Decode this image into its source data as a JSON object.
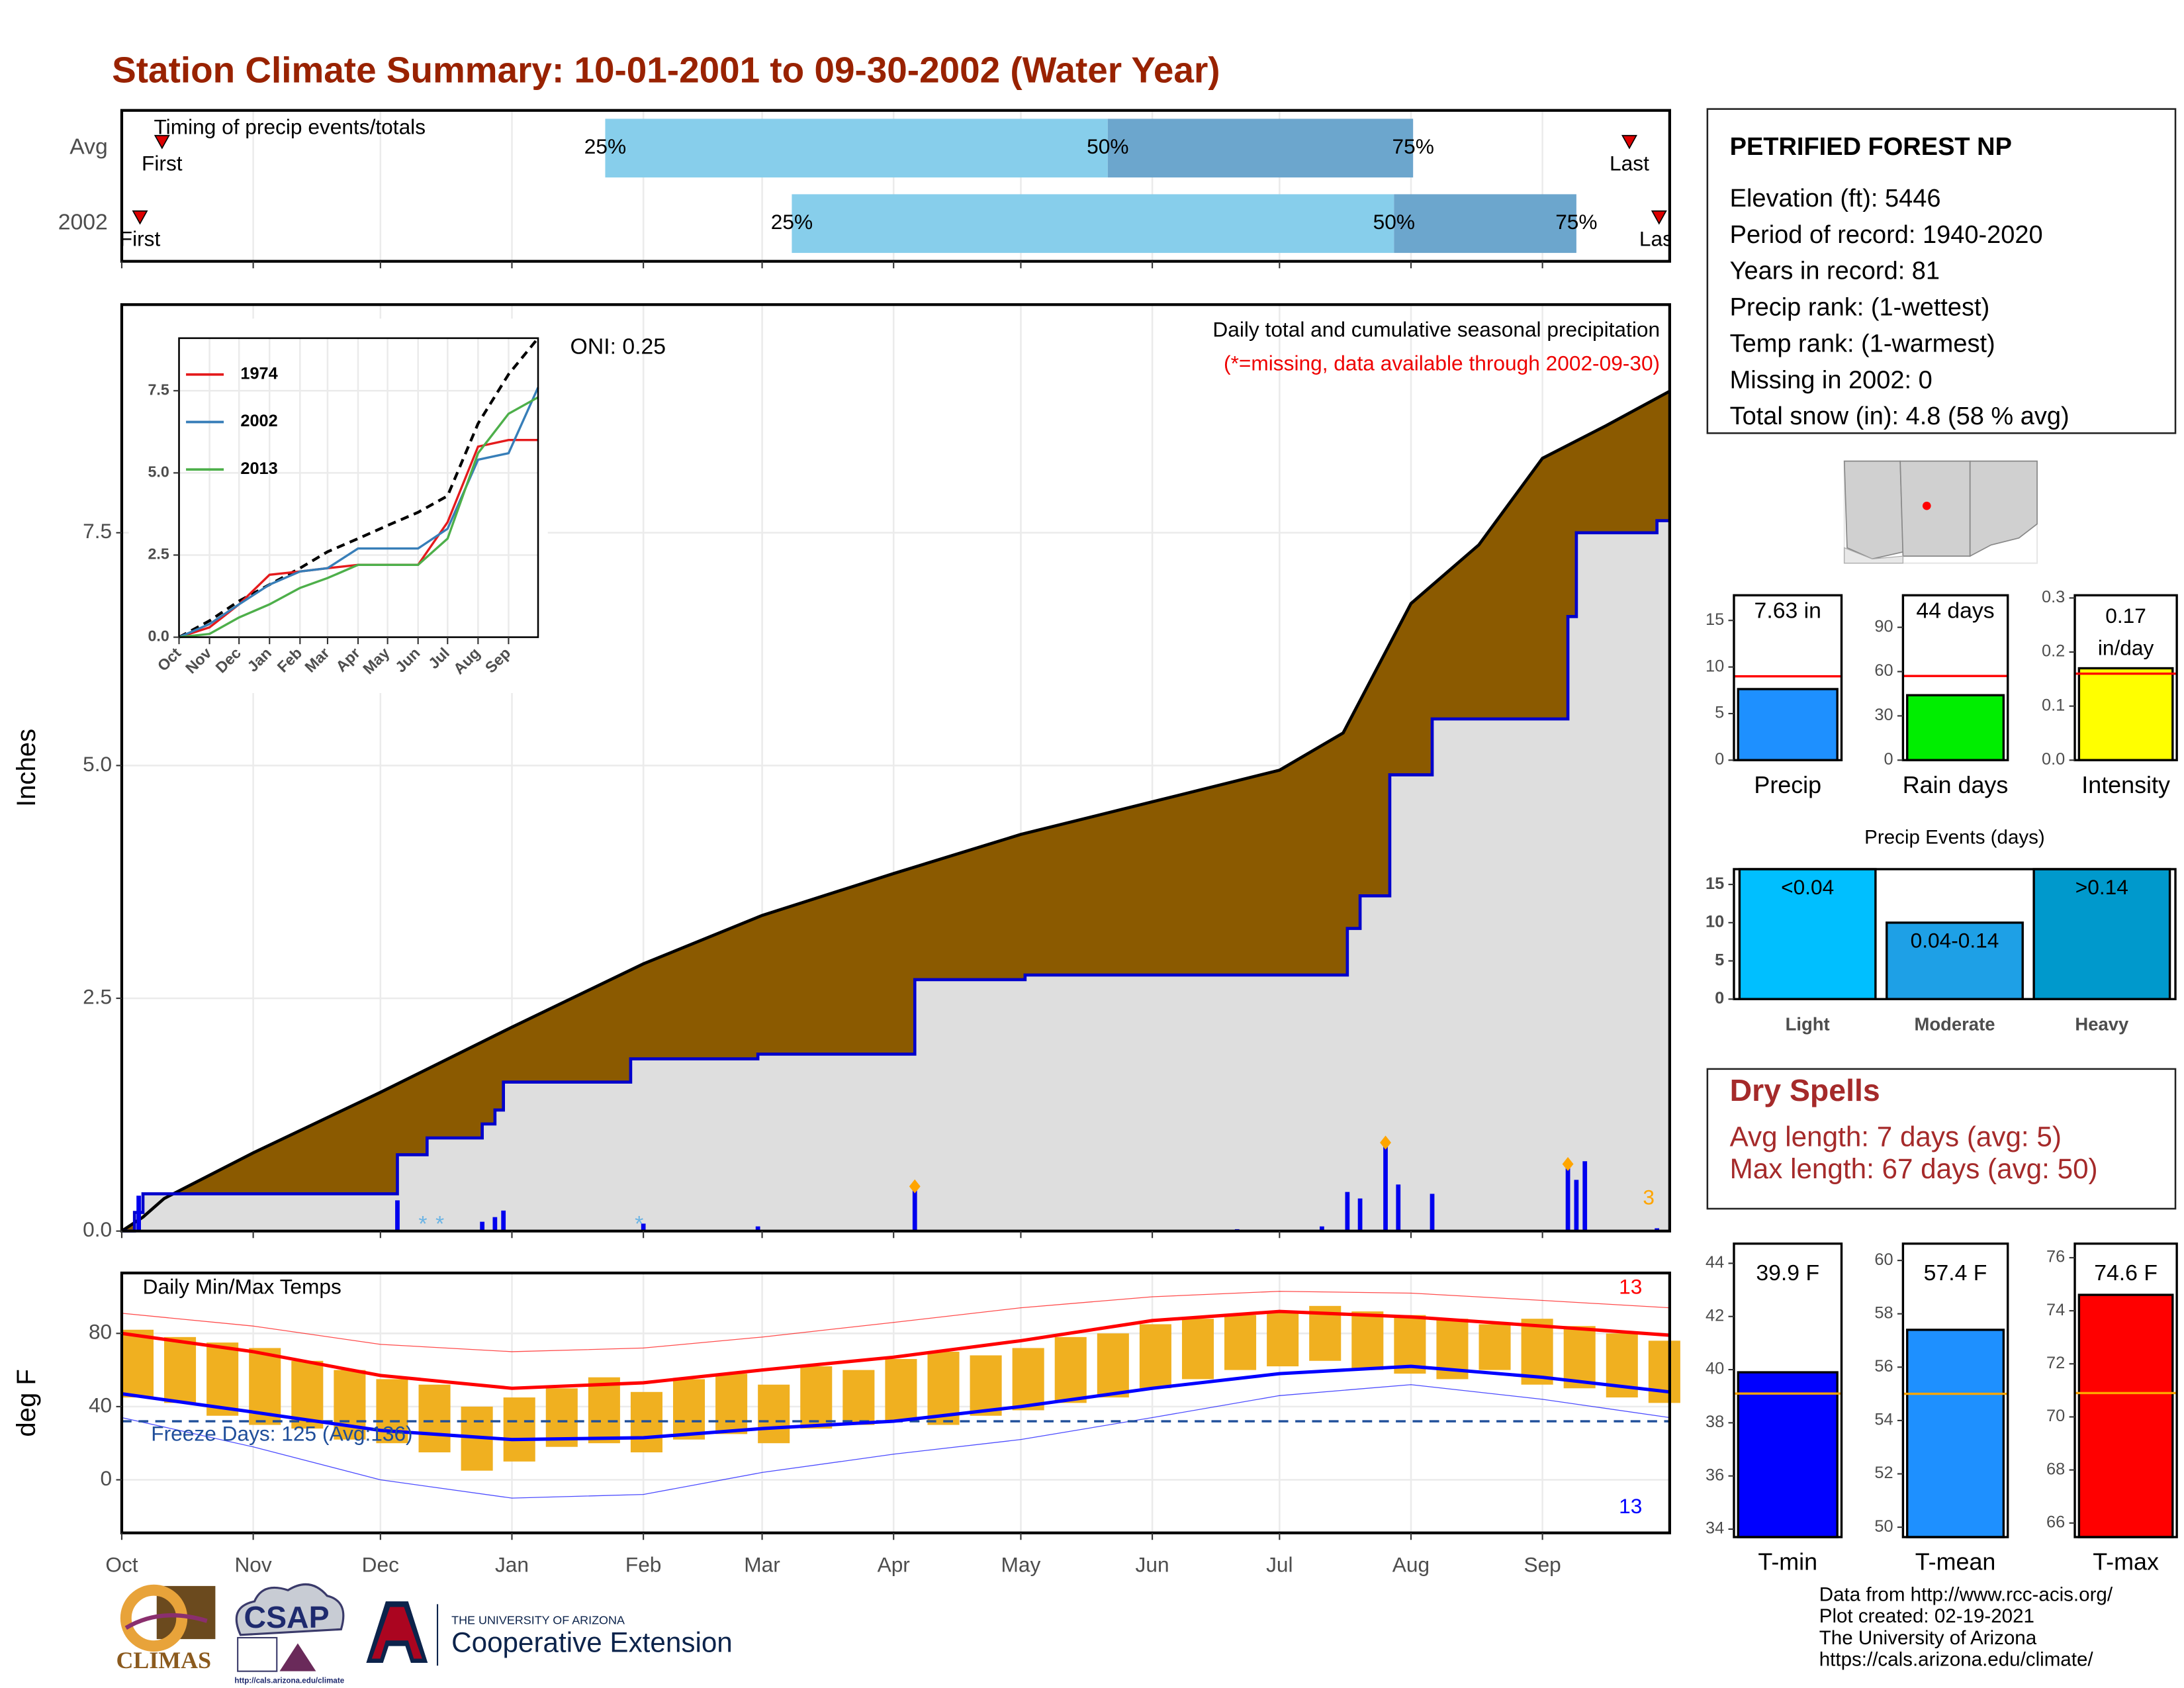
{
  "title": "Station Climate Summary: 10-01-2001 to 09-30-2002 (Water Year)",
  "info": {
    "station": "PETRIFIED FOREST NP",
    "lines": [
      "Elevation (ft): 5446",
      "Period of record: 1940-2020",
      "Years in record: 81",
      "Precip rank:  (1-wettest)",
      "Temp rank:  (1-warmest)",
      "Missing in 2002: 0",
      "Total snow (in): 4.8 (58 % avg)"
    ]
  },
  "dry_spells": {
    "title": "Dry Spells",
    "lines": [
      "Avg length: 7 days (avg: 5)",
      "Max length: 67 days (avg: 50)"
    ]
  },
  "footer": [
    "Data from http://www.rcc-acis.org/",
    "Plot created: 02-19-2021",
    "The University of Arizona",
    "https://cals.arizona.edu/climate/"
  ],
  "logos": {
    "climas": "CLIMAS",
    "csap": "CSAP",
    "csap_url": "http://cals.arizona.edu/climate",
    "university": "THE UNIVERSITY OF ARIZONA",
    "extension": "Cooperative Extension"
  },
  "chart_data": [
    {
      "type": "timing",
      "title": "Timing of precip events/totals",
      "xlim": [
        0,
        365
      ],
      "xticks": [
        0,
        31,
        61,
        92,
        123,
        151,
        182,
        212,
        243,
        273,
        304,
        335
      ],
      "grid": true,
      "labels": {
        "first": "First",
        "last": "Last",
        "q25": "25%",
        "q50": "50%",
        "q75": "75%"
      },
      "rows": [
        {
          "name": "Avg",
          "first": 9.5,
          "q25": 114,
          "q50": 232.5,
          "q75": 304.5,
          "last": 355.5
        },
        {
          "name": "2002",
          "first": 4.3,
          "q25": 158,
          "q50": 300,
          "q75": 343,
          "last": 362.5
        }
      ],
      "colors": {
        "light": "#87ceeb",
        "dark": "#6ca6cd",
        "marker": "#dd0000"
      }
    },
    {
      "type": "cumulative",
      "title": "Daily total and cumulative seasonal precipitation",
      "subtitle": "(*=missing, data available through 2002-09-30)",
      "oni": "ONI: 0.25",
      "ylabel": "Inches",
      "xlim": [
        0,
        365
      ],
      "ylim": [
        0,
        9.95
      ],
      "xticks": [
        0,
        31,
        61,
        92,
        123,
        151,
        182,
        212,
        243,
        273,
        304,
        335
      ],
      "yticks": [
        {
          "value": 0,
          "label": "0.0"
        },
        2.5,
        {
          "value": 5,
          "label": "5.0"
        },
        7.5
      ],
      "grid": true,
      "average": {
        "x": [
          0,
          5,
          10,
          31,
          61,
          92,
          123,
          151,
          182,
          212,
          243,
          273,
          288,
          304,
          320,
          335,
          350,
          365
        ],
        "values": [
          0,
          0.15,
          0.35,
          0.84,
          1.49,
          2.19,
          2.87,
          3.39,
          3.84,
          4.26,
          4.61,
          4.95,
          5.35,
          6.74,
          7.37,
          8.3,
          8.65,
          9.02
        ]
      },
      "observed": {
        "x": [
          0,
          3,
          3,
          5,
          5,
          65,
          65,
          72,
          72,
          85,
          85,
          88,
          88,
          90,
          90,
          120,
          120,
          150,
          150,
          187,
          187,
          213,
          213,
          289,
          289,
          292,
          292,
          299,
          299,
          309,
          309,
          341,
          341,
          343,
          343,
          362,
          362,
          365
        ],
        "values": [
          0,
          0,
          0.2,
          0.2,
          0.4,
          0.4,
          0.82,
          0.82,
          1.0,
          1.0,
          1.15,
          1.15,
          1.3,
          1.3,
          1.6,
          1.6,
          1.85,
          1.85,
          1.9,
          1.9,
          2.7,
          2.7,
          2.75,
          2.75,
          3.25,
          3.25,
          3.6,
          3.6,
          4.9,
          4.9,
          5.5,
          5.5,
          6.6,
          6.6,
          7.5,
          7.5,
          7.63,
          7.63
        ]
      },
      "daily": {
        "x": [
          4,
          65,
          85,
          88,
          90,
          123,
          150,
          187,
          263,
          283,
          289,
          292,
          298,
          301,
          309,
          341,
          343,
          345,
          362
        ],
        "values": [
          0.38,
          0.33,
          0.1,
          0.15,
          0.22,
          0.08,
          0.05,
          0.48,
          0.02,
          0.05,
          0.42,
          0.35,
          0.95,
          0.5,
          0.4,
          0.72,
          0.55,
          0.75,
          0.03
        ]
      },
      "top_events": {
        "x": [
          187,
          298,
          341
        ],
        "values": [
          0.48,
          0.95,
          0.72
        ]
      },
      "top_events_label": "3",
      "missing": {
        "x": [
          71,
          75,
          122
        ],
        "label": "*"
      },
      "average_color": "#8b5a00",
      "observed_color": "#dedede",
      "line_color": "#0000cc",
      "bar_color": "#0000ee",
      "event_color": "#ffa500",
      "missing_color": "#6cb4e4",
      "subtitle_color": "#ee0000"
    },
    {
      "type": "line",
      "x": [
        0,
        31,
        61,
        92,
        123,
        151,
        182,
        212,
        243,
        273,
        304,
        335,
        365
      ],
      "xlim": [
        0,
        365
      ],
      "xticks": [
        {
          "value": 0,
          "label": "Oct"
        },
        {
          "value": 31,
          "label": "Nov"
        },
        {
          "value": 61,
          "label": "Dec"
        },
        {
          "value": 92,
          "label": "Jan"
        },
        {
          "value": 123,
          "label": "Feb"
        },
        {
          "value": 151,
          "label": "Mar"
        },
        {
          "value": 182,
          "label": "Apr"
        },
        {
          "value": 212,
          "label": "May"
        },
        {
          "value": 243,
          "label": "Jun"
        },
        {
          "value": 273,
          "label": "Jul"
        },
        {
          "value": 304,
          "label": "Aug"
        },
        {
          "value": 335,
          "label": "Sep"
        }
      ],
      "ylim": [
        0,
        9.1
      ],
      "yticks": [
        {
          "value": 0,
          "label": "0.0"
        },
        2.5,
        {
          "value": 5,
          "label": "5.0"
        },
        7.5
      ],
      "grid": true,
      "average": {
        "color": "#000000",
        "values": [
          0,
          0.5,
          1.1,
          1.6,
          2.1,
          2.6,
          3.0,
          3.4,
          3.8,
          4.3,
          6.5,
          8.0,
          9.1
        ]
      },
      "series": [
        {
          "name": "1974",
          "color": "#e41a1c",
          "values": [
            0,
            0.3,
            1.0,
            1.9,
            2.0,
            2.1,
            2.2,
            2.2,
            2.2,
            3.5,
            5.8,
            6.0,
            6.0
          ]
        },
        {
          "name": "2002",
          "color": "#377eb8",
          "values": [
            0,
            0.4,
            1.0,
            1.6,
            2.0,
            2.1,
            2.7,
            2.7,
            2.7,
            3.3,
            5.4,
            5.6,
            7.6
          ]
        },
        {
          "name": "2013",
          "color": "#4daf4a",
          "values": [
            0,
            0.1,
            0.6,
            1.0,
            1.5,
            1.8,
            2.2,
            2.2,
            2.2,
            3.0,
            5.6,
            6.8,
            7.3
          ]
        }
      ]
    },
    {
      "type": "temperature",
      "title": "Daily Min/Max Temps",
      "ylabel": "deg F",
      "xlim": [
        0,
        365
      ],
      "ylim": [
        -29,
        113
      ],
      "xticks": [
        {
          "value": 0,
          "label": "Oct"
        },
        {
          "value": 31,
          "label": "Nov"
        },
        {
          "value": 61,
          "label": "Dec"
        },
        {
          "value": 92,
          "label": "Jan"
        },
        {
          "value": 123,
          "label": "Feb"
        },
        {
          "value": 151,
          "label": "Mar"
        },
        {
          "value": 182,
          "label": "Apr"
        },
        {
          "value": 212,
          "label": "May"
        },
        {
          "value": 243,
          "label": "Jun"
        },
        {
          "value": 273,
          "label": "Jul"
        },
        {
          "value": 304,
          "label": "Aug"
        },
        {
          "value": 335,
          "label": "Sep"
        }
      ],
      "yticks": [
        0,
        40,
        80
      ],
      "grid": true,
      "x": [
        0,
        10,
        20,
        30,
        40,
        50,
        60,
        70,
        80,
        90,
        100,
        110,
        120,
        130,
        140,
        150,
        160,
        170,
        180,
        190,
        200,
        210,
        220,
        230,
        240,
        250,
        260,
        270,
        280,
        290,
        300,
        310,
        320,
        330,
        340,
        350,
        360
      ],
      "tmax": [
        82,
        78,
        75,
        72,
        65,
        60,
        55,
        52,
        40,
        45,
        50,
        56,
        48,
        55,
        58,
        52,
        62,
        60,
        66,
        70,
        68,
        72,
        78,
        80,
        85,
        88,
        90,
        92,
        95,
        92,
        90,
        88,
        85,
        88,
        84,
        80,
        76
      ],
      "tmin": [
        45,
        42,
        35,
        30,
        28,
        22,
        20,
        15,
        5,
        10,
        18,
        20,
        15,
        22,
        25,
        20,
        28,
        30,
        32,
        30,
        35,
        38,
        42,
        45,
        50,
        55,
        60,
        62,
        65,
        60,
        58,
        55,
        60,
        52,
        50,
        45,
        42
      ],
      "avg_x": [
        0,
        31,
        61,
        92,
        123,
        151,
        182,
        212,
        243,
        273,
        304,
        335,
        365
      ],
      "avg_max": [
        80,
        70,
        57,
        50,
        53,
        60,
        67,
        76,
        87,
        92,
        89,
        84,
        79
      ],
      "avg_min": [
        47,
        37,
        27,
        22,
        23,
        28,
        32,
        40,
        50,
        58,
        62,
        56,
        48
      ],
      "record_max": [
        91,
        84,
        74,
        70,
        72,
        78,
        86,
        94,
        100,
        103,
        102,
        98,
        94
      ],
      "record_min": [
        34,
        18,
        0,
        -10,
        -8,
        4,
        14,
        22,
        34,
        46,
        52,
        44,
        34
      ],
      "freeze": 32,
      "freeze_label": "Freeze Days: 125 (Avg:136)",
      "max_count_label": "13",
      "min_count_label": "13",
      "bar_color": "#f0b020",
      "max_color": "#ff0000",
      "min_color": "#0000ff",
      "freeze_color": "#1f4e9a"
    },
    {
      "type": "bar",
      "categories": [
        "Precip"
      ],
      "values": [
        7.63
      ],
      "value_labels": [
        "7.63 in"
      ],
      "average": 9.0,
      "ylim": [
        0,
        17.7
      ],
      "yticks": [
        0,
        5,
        10,
        15
      ],
      "colors": [
        "#1e90ff"
      ],
      "average_color": "#ff0000"
    },
    {
      "type": "bar",
      "categories": [
        "Rain days"
      ],
      "values": [
        44
      ],
      "value_labels": [
        "44 days"
      ],
      "average": 57,
      "ylim": [
        0,
        111.7
      ],
      "yticks": [
        0,
        30,
        60,
        90
      ],
      "colors": [
        "#00ee00"
      ],
      "average_color": "#ff0000"
    },
    {
      "type": "bar",
      "categories": [
        "Intensity"
      ],
      "values": [
        0.17
      ],
      "value_labels": [
        "0.17 in/day"
      ],
      "average": 0.16,
      "ylim": [
        0,
        0.305
      ],
      "yticks": [
        {
          "value": 0,
          "label": "0.0"
        },
        0.1,
        0.2,
        0.3
      ],
      "colors": [
        "#ffff00"
      ],
      "average_color": "#ff0000"
    },
    {
      "type": "bar",
      "title": "Precip Events (days)",
      "categories": [
        "Light",
        "Moderate",
        "Heavy"
      ],
      "values": [
        17,
        10,
        17
      ],
      "value_labels": [
        "<0.04",
        "0.04-0.14",
        ">0.14"
      ],
      "ylim": [
        0,
        17
      ],
      "yticks": [
        0,
        5,
        10,
        15
      ],
      "colors": [
        "#00bfff",
        "#1ea0e6",
        "#0099cc"
      ]
    },
    {
      "type": "bar",
      "categories": [
        "T-min"
      ],
      "values": [
        39.9
      ],
      "value_labels": [
        "39.9 F"
      ],
      "average": 39.1,
      "ylim": [
        33.7,
        44.74
      ],
      "yticks": [
        34,
        36,
        38,
        40,
        42,
        44
      ],
      "colors": [
        "#0000ff"
      ],
      "average_color": "#ffa500"
    },
    {
      "type": "bar",
      "categories": [
        "T-mean"
      ],
      "values": [
        57.4
      ],
      "value_labels": [
        "57.4 F"
      ],
      "average": 55.0,
      "ylim": [
        49.63,
        60.63
      ],
      "yticks": [
        50,
        52,
        54,
        56,
        58,
        60
      ],
      "colors": [
        "#1e90ff"
      ],
      "average_color": "#ffa500"
    },
    {
      "type": "bar",
      "categories": [
        "T-max"
      ],
      "values": [
        74.6
      ],
      "value_labels": [
        "74.6 F"
      ],
      "average": 70.9,
      "ylim": [
        65.47,
        76.53
      ],
      "yticks": [
        66,
        68,
        70,
        72,
        74,
        76
      ],
      "colors": [
        "#ff0000"
      ],
      "average_color": "#ffa500"
    }
  ]
}
